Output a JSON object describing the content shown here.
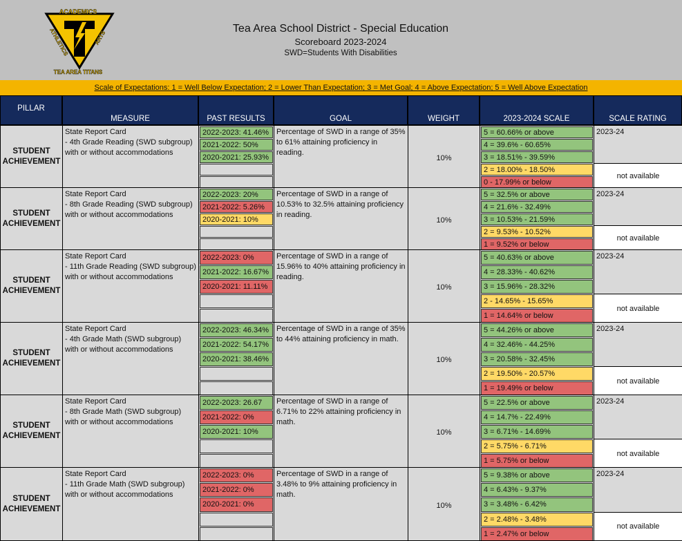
{
  "header": {
    "logo": {
      "top": "ACADEMICS",
      "left": "ATHLETICS",
      "right": "ARTS",
      "bottom": "TEA AREA TITANS"
    },
    "title": "Tea Area School District - Special Education",
    "subtitle": "Scoreboard 2023-2024",
    "note": "SWD=Students With Disabilities"
  },
  "scale_note": "Scale of Expectations: 1 = Well Below Expectation; 2 = Lower Than Expectation; 3 = Met Goal; 4 = Above Expectation; 5 = Well Above Expectation",
  "columns": [
    "PILLAR",
    "MEASURE",
    "PAST RESULTS",
    "GOAL",
    "WEIGHT",
    "2023-2024 SCALE",
    "SCALE RATING"
  ],
  "rows": [
    {
      "pillar": "STUDENT ACHIEVEMENT",
      "measure": [
        "State Report Card",
        "- 4th Grade Reading (SWD subgroup) with or without accommodations"
      ],
      "past_results": [
        {
          "text": "2022-2023: 41.46%",
          "color": "#93c47d"
        },
        {
          "text": "2021-2022: 50%",
          "color": "#93c47d"
        },
        {
          "text": "2020-2021: 25.93%",
          "color": "#93c47d"
        }
      ],
      "goal": "Percentage of SWD in a range of 35% to 61% attaining proficiency in reading.",
      "weight": "10%",
      "scale": [
        {
          "text": "5 = 60.66% or above",
          "color": "#93c47d"
        },
        {
          "text": "4 = 39.6% - 60.65%",
          "color": "#93c47d"
        },
        {
          "text": "3 = 18.51% - 39.59%",
          "color": "#93c47d"
        },
        {
          "text": "2 = 18.00% - 18.50%",
          "color": "#ffd966"
        },
        {
          "text": "0 - 17.99% or below",
          "color": "#e06666"
        }
      ],
      "rating_year": "2023-24",
      "rating": "not available"
    },
    {
      "pillar": "STUDENT ACHIEVEMENT",
      "measure": [
        "State Report Card",
        "- 8th Grade Reading (SWD subgroup) with or without accommodations"
      ],
      "past_results": [
        {
          "text": "2022-2023: 20%",
          "color": "#93c47d"
        },
        {
          "text": "2021-2022: 5.26%",
          "color": "#e06666"
        },
        {
          "text": "2020-2021: 10%",
          "color": "#ffd966"
        }
      ],
      "goal": "Percentage of SWD in a range of 10.53% to 32.5% attaining proficiency in reading.",
      "weight": "10%",
      "scale": [
        {
          "text": "5 = 32.5% or above",
          "color": "#93c47d"
        },
        {
          "text": "4 = 21.6% - 32.49%",
          "color": "#93c47d"
        },
        {
          "text": "3 = 10.53% - 21.59%",
          "color": "#93c47d"
        },
        {
          "text": "2 = 9.53% - 10.52%",
          "color": "#ffd966"
        },
        {
          "text": "1 = 9.52% or below",
          "color": "#e06666"
        }
      ],
      "rating_year": "2023-24",
      "rating": "not available"
    },
    {
      "pillar": "STUDENT ACHIEVEMENT",
      "measure": [
        "State Report Card",
        "- 11th Grade Reading (SWD subgroup) with or without accommodations"
      ],
      "past_results": [
        {
          "text": "2022-2023: 0%",
          "color": "#e06666"
        },
        {
          "text": "2021-2022: 16.67%",
          "color": "#93c47d"
        },
        {
          "text": "2020-2021: 11.11%",
          "color": "#e06666"
        }
      ],
      "goal": "Percentage of SWD in a range of 15.96% to 40% attaining proficiency in reading.",
      "weight": "10%",
      "scale": [
        {
          "text": "5 = 40.63% or above",
          "color": "#93c47d"
        },
        {
          "text": "4 = 28.33% - 40.62%",
          "color": "#93c47d"
        },
        {
          "text": "3 = 15.96% - 28.32%",
          "color": "#93c47d"
        },
        {
          "text": "2 - 14.65% - 15.65%",
          "color": "#ffd966"
        },
        {
          "text": "1 = 14.64% or below",
          "color": "#e06666"
        }
      ],
      "rating_year": "2023-24",
      "rating": "not available"
    },
    {
      "pillar": "STUDENT ACHIEVEMENT",
      "measure": [
        "State Report Card",
        "- 4th Grade Math (SWD subgroup) with or without accommodations"
      ],
      "past_results": [
        {
          "text": "2022-2023: 46.34%",
          "color": "#93c47d"
        },
        {
          "text": "2021-2022: 54.17%",
          "color": "#93c47d"
        },
        {
          "text": "2020-2021: 38.46%",
          "color": "#93c47d"
        }
      ],
      "goal": "Percentage of SWD in a range of 35% to 44% attaining proficiency in math.",
      "weight": "10%",
      "scale": [
        {
          "text": "5 = 44.26% or above",
          "color": "#93c47d"
        },
        {
          "text": "4 = 32.46% - 44.25%",
          "color": "#93c47d"
        },
        {
          "text": "3 = 20.58% - 32.45%",
          "color": "#93c47d"
        },
        {
          "text": "2 = 19.50% - 20.57%",
          "color": "#ffd966"
        },
        {
          "text": "1 = 19.49% or below",
          "color": "#e06666"
        }
      ],
      "rating_year": "2023-24",
      "rating": "not available"
    },
    {
      "pillar": "STUDENT ACHIEVEMENT",
      "measure": [
        "State Report Card",
        "- 8th Grade Math (SWD subgroup) with or without accommodations"
      ],
      "past_results": [
        {
          "text": "2022-2023: 26.67",
          "color": "#93c47d"
        },
        {
          "text": "2021-2022: 0%",
          "color": "#e06666"
        },
        {
          "text": "2020-2021: 10%",
          "color": "#93c47d"
        }
      ],
      "goal": "Percentage of SWD in a range of 6.71% to 22% attaining proficiency in math.",
      "weight": "10%",
      "scale": [
        {
          "text": "5 = 22.5% or above",
          "color": "#93c47d"
        },
        {
          "text": "4 = 14.7% - 22.49%",
          "color": "#93c47d"
        },
        {
          "text": "3 = 6.71% - 14.69%",
          "color": "#93c47d"
        },
        {
          "text": "2 = 5.75% - 6.71%",
          "color": "#ffd966"
        },
        {
          "text": "1 = 5.75% or below",
          "color": "#e06666"
        }
      ],
      "rating_year": "2023-24",
      "rating": "not available"
    },
    {
      "pillar": "STUDENT ACHIEVEMENT",
      "measure": [
        "State Report Card",
        "- 11th Grade Math (SWD subgroup) with or without accommodations"
      ],
      "past_results": [
        {
          "text": "2022-2023: 0%",
          "color": "#e06666"
        },
        {
          "text": "2021-2022: 0%",
          "color": "#e06666"
        },
        {
          "text": "2020-2021: 0%",
          "color": "#e06666"
        }
      ],
      "goal": "Percentage of SWD in a range of 3.48% to 9% attaining proficiency in math.",
      "weight": "10%",
      "scale": [
        {
          "text": "5 = 9.38% or above",
          "color": "#93c47d"
        },
        {
          "text": "4 = 6.43% - 9.37%",
          "color": "#93c47d"
        },
        {
          "text": "3 = 3.48% - 6.42%",
          "color": "#93c47d"
        },
        {
          "text": "2 = 2.48% - 3.48%",
          "color": "#ffd966"
        },
        {
          "text": "1 = 2.47% or below",
          "color": "#e06666"
        }
      ],
      "rating_year": "2023-24",
      "rating": "not available"
    }
  ]
}
